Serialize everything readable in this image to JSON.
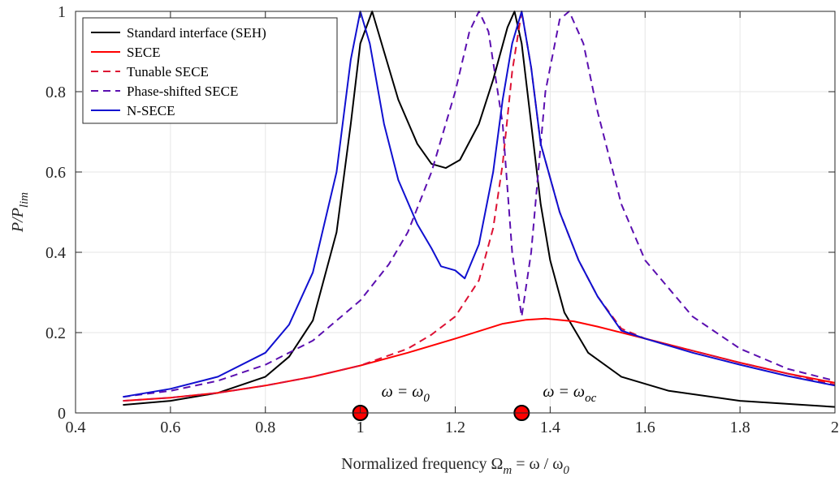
{
  "chart_data": {
    "type": "line",
    "xlabel": {
      "base": "Normalized frequency Ω",
      "sub1": "m",
      "mid": " = ω / ω",
      "sub2": "0"
    },
    "ylabel": {
      "base": "P/P",
      "sub": "lim"
    },
    "xlim": [
      0.4,
      2.0
    ],
    "ylim": [
      0,
      1.0
    ],
    "xticks": [
      0.4,
      0.6,
      0.8,
      1.0,
      1.2,
      1.4,
      1.6,
      1.8,
      2.0
    ],
    "xtick_labels": [
      "0.4",
      "0.6",
      "0.8",
      "1",
      "1.2",
      "1.4",
      "1.6",
      "1.8",
      "2"
    ],
    "yticks": [
      0,
      0.2,
      0.4,
      0.6,
      0.8,
      1.0
    ],
    "ytick_labels": [
      "0",
      "0.2",
      "0.4",
      "0.6",
      "0.8",
      "1"
    ],
    "grid": true,
    "legend_position": "top-left",
    "series": [
      {
        "name": "Standard interface (SEH)",
        "color": "#000000",
        "style": "solid",
        "points": [
          [
            0.5,
            0.02
          ],
          [
            0.6,
            0.03
          ],
          [
            0.7,
            0.05
          ],
          [
            0.8,
            0.09
          ],
          [
            0.85,
            0.14
          ],
          [
            0.9,
            0.23
          ],
          [
            0.95,
            0.45
          ],
          [
            0.98,
            0.72
          ],
          [
            1.0,
            0.92
          ],
          [
            1.025,
            1.0
          ],
          [
            1.05,
            0.9
          ],
          [
            1.08,
            0.78
          ],
          [
            1.12,
            0.67
          ],
          [
            1.15,
            0.62
          ],
          [
            1.18,
            0.61
          ],
          [
            1.21,
            0.63
          ],
          [
            1.25,
            0.72
          ],
          [
            1.28,
            0.83
          ],
          [
            1.31,
            0.96
          ],
          [
            1.325,
            1.0
          ],
          [
            1.34,
            0.92
          ],
          [
            1.36,
            0.72
          ],
          [
            1.38,
            0.52
          ],
          [
            1.4,
            0.38
          ],
          [
            1.43,
            0.25
          ],
          [
            1.48,
            0.15
          ],
          [
            1.55,
            0.09
          ],
          [
            1.65,
            0.055
          ],
          [
            1.8,
            0.03
          ],
          [
            2.0,
            0.015
          ]
        ]
      },
      {
        "name": "SECE",
        "color": "#ff0000",
        "style": "solid",
        "points": [
          [
            0.5,
            0.03
          ],
          [
            0.6,
            0.038
          ],
          [
            0.7,
            0.05
          ],
          [
            0.8,
            0.068
          ],
          [
            0.9,
            0.09
          ],
          [
            1.0,
            0.118
          ],
          [
            1.1,
            0.15
          ],
          [
            1.2,
            0.185
          ],
          [
            1.3,
            0.222
          ],
          [
            1.35,
            0.232
          ],
          [
            1.39,
            0.235
          ],
          [
            1.45,
            0.228
          ],
          [
            1.5,
            0.215
          ],
          [
            1.6,
            0.185
          ],
          [
            1.7,
            0.155
          ],
          [
            1.8,
            0.125
          ],
          [
            1.9,
            0.098
          ],
          [
            2.0,
            0.075
          ]
        ]
      },
      {
        "name": "Tunable SECE",
        "color": "#dd1133",
        "style": "dashed",
        "points": [
          [
            0.5,
            0.03
          ],
          [
            0.6,
            0.038
          ],
          [
            0.7,
            0.05
          ],
          [
            0.8,
            0.068
          ],
          [
            0.9,
            0.09
          ],
          [
            1.0,
            0.118
          ],
          [
            1.1,
            0.16
          ],
          [
            1.15,
            0.195
          ],
          [
            1.2,
            0.24
          ],
          [
            1.25,
            0.33
          ],
          [
            1.28,
            0.46
          ],
          [
            1.3,
            0.62
          ],
          [
            1.32,
            0.85
          ],
          [
            1.34,
            1.0
          ],
          [
            1.36,
            0.86
          ],
          [
            1.38,
            0.67
          ],
          [
            1.42,
            0.5
          ],
          [
            1.46,
            0.38
          ],
          [
            1.5,
            0.29
          ],
          [
            1.55,
            0.21
          ],
          [
            1.6,
            0.185
          ],
          [
            1.7,
            0.155
          ],
          [
            1.8,
            0.125
          ],
          [
            1.9,
            0.098
          ],
          [
            2.0,
            0.07
          ]
        ]
      },
      {
        "name": "Phase-shifted SECE",
        "color": "#5b0fb0",
        "style": "dashed",
        "points": [
          [
            0.5,
            0.04
          ],
          [
            0.6,
            0.055
          ],
          [
            0.7,
            0.08
          ],
          [
            0.8,
            0.12
          ],
          [
            0.9,
            0.18
          ],
          [
            1.0,
            0.28
          ],
          [
            1.06,
            0.37
          ],
          [
            1.1,
            0.45
          ],
          [
            1.15,
            0.6
          ],
          [
            1.2,
            0.8
          ],
          [
            1.23,
            0.95
          ],
          [
            1.25,
            1.0
          ],
          [
            1.27,
            0.95
          ],
          [
            1.3,
            0.72
          ],
          [
            1.32,
            0.4
          ],
          [
            1.34,
            0.24
          ],
          [
            1.36,
            0.4
          ],
          [
            1.39,
            0.8
          ],
          [
            1.42,
            0.98
          ],
          [
            1.44,
            1.0
          ],
          [
            1.47,
            0.92
          ],
          [
            1.5,
            0.75
          ],
          [
            1.55,
            0.52
          ],
          [
            1.6,
            0.38
          ],
          [
            1.7,
            0.24
          ],
          [
            1.8,
            0.16
          ],
          [
            1.9,
            0.11
          ],
          [
            2.0,
            0.08
          ]
        ]
      },
      {
        "name": "N-SECE",
        "color": "#1010d0",
        "style": "solid",
        "points": [
          [
            0.5,
            0.04
          ],
          [
            0.6,
            0.06
          ],
          [
            0.7,
            0.09
          ],
          [
            0.8,
            0.15
          ],
          [
            0.85,
            0.22
          ],
          [
            0.9,
            0.35
          ],
          [
            0.95,
            0.6
          ],
          [
            0.98,
            0.88
          ],
          [
            1.0,
            1.0
          ],
          [
            1.02,
            0.92
          ],
          [
            1.05,
            0.72
          ],
          [
            1.08,
            0.58
          ],
          [
            1.12,
            0.47
          ],
          [
            1.15,
            0.41
          ],
          [
            1.17,
            0.365
          ],
          [
            1.2,
            0.355
          ],
          [
            1.22,
            0.335
          ],
          [
            1.25,
            0.42
          ],
          [
            1.28,
            0.6
          ],
          [
            1.3,
            0.78
          ],
          [
            1.32,
            0.92
          ],
          [
            1.34,
            1.0
          ],
          [
            1.36,
            0.86
          ],
          [
            1.38,
            0.67
          ],
          [
            1.42,
            0.5
          ],
          [
            1.46,
            0.38
          ],
          [
            1.5,
            0.29
          ],
          [
            1.55,
            0.205
          ],
          [
            1.6,
            0.185
          ],
          [
            1.7,
            0.15
          ],
          [
            1.8,
            0.12
          ],
          [
            1.9,
            0.092
          ],
          [
            2.0,
            0.068
          ]
        ]
      }
    ],
    "markers": [
      {
        "x": 1.0,
        "y": 0,
        "color": "#ff0000",
        "label_base": "ω = ω",
        "label_sub": "0"
      },
      {
        "x": 1.34,
        "y": 0,
        "color": "#ff0000",
        "label_base": "ω = ω",
        "label_sub": "oc"
      }
    ]
  }
}
